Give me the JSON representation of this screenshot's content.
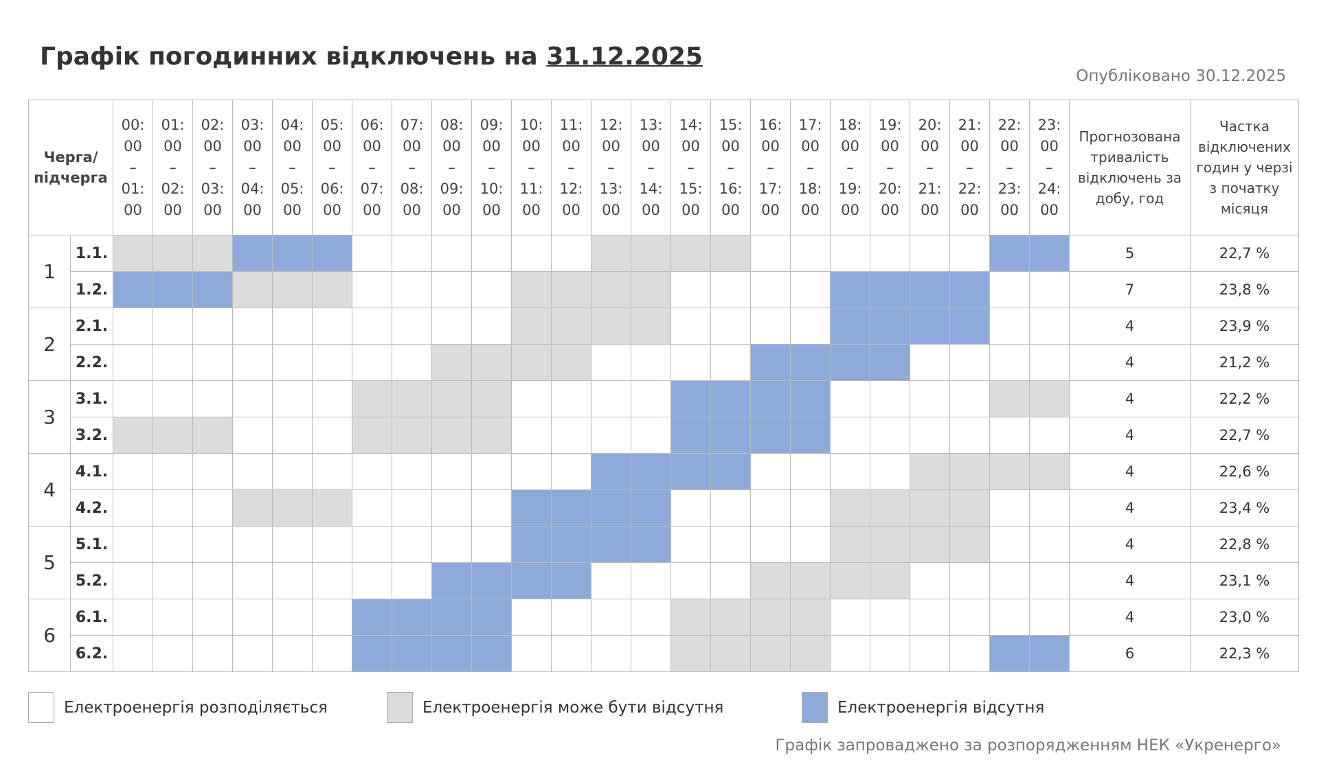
{
  "header": {
    "title": "Графік погодинних відключень на",
    "date": "31.12.2025",
    "published": "Опубліковано 30.12.2025"
  },
  "table": {
    "columns": {
      "queue": "Черга/ підчерга",
      "hours": [
        [
          "00:",
          "00",
          "–",
          "01:",
          "00"
        ],
        [
          "01:",
          "00",
          "–",
          "02:",
          "00"
        ],
        [
          "02:",
          "00",
          "–",
          "03:",
          "00"
        ],
        [
          "03:",
          "00",
          "–",
          "04:",
          "00"
        ],
        [
          "04:",
          "00",
          "–",
          "05:",
          "00"
        ],
        [
          "05:",
          "00",
          "–",
          "06:",
          "00"
        ],
        [
          "06:",
          "00",
          "–",
          "07:",
          "00"
        ],
        [
          "07:",
          "00",
          "–",
          "08:",
          "00"
        ],
        [
          "08:",
          "00",
          "–",
          "09:",
          "00"
        ],
        [
          "09:",
          "00",
          "–",
          "10:",
          "00"
        ],
        [
          "10:",
          "00",
          "–",
          "11:",
          "00"
        ],
        [
          "11:",
          "00",
          "–",
          "12:",
          "00"
        ],
        [
          "12:",
          "00",
          "–",
          "13:",
          "00"
        ],
        [
          "13:",
          "00",
          "–",
          "14:",
          "00"
        ],
        [
          "14:",
          "00",
          "–",
          "15:",
          "00"
        ],
        [
          "15:",
          "00",
          "–",
          "16:",
          "00"
        ],
        [
          "16:",
          "00",
          "–",
          "17:",
          "00"
        ],
        [
          "17:",
          "00",
          "–",
          "18:",
          "00"
        ],
        [
          "18:",
          "00",
          "–",
          "19:",
          "00"
        ],
        [
          "19:",
          "00",
          "–",
          "20:",
          "00"
        ],
        [
          "20:",
          "00",
          "–",
          "21:",
          "00"
        ],
        [
          "21:",
          "00",
          "–",
          "22:",
          "00"
        ],
        [
          "22:",
          "00",
          "–",
          "23:",
          "00"
        ],
        [
          "23:",
          "00",
          "–",
          "24:",
          "00"
        ]
      ],
      "duration": "Прогнозована тривалість відключень за добу, год",
      "share": "Частка відключених годин у черзі з початку місяця"
    },
    "groups": [
      {
        "queue": "1",
        "rows": [
          {
            "sub": "1.1.",
            "hours": [
              1,
              1,
              1,
              2,
              2,
              2,
              0,
              0,
              0,
              0,
              0,
              0,
              1,
              1,
              1,
              1,
              0,
              0,
              0,
              0,
              0,
              0,
              2,
              2
            ],
            "duration": 5,
            "share": "22,7 %"
          },
          {
            "sub": "1.2.",
            "hours": [
              2,
              2,
              2,
              1,
              1,
              1,
              0,
              0,
              0,
              0,
              1,
              1,
              1,
              1,
              0,
              0,
              0,
              0,
              2,
              2,
              2,
              2,
              0,
              0
            ],
            "duration": 7,
            "share": "23,8 %"
          }
        ]
      },
      {
        "queue": "2",
        "rows": [
          {
            "sub": "2.1.",
            "hours": [
              0,
              0,
              0,
              0,
              0,
              0,
              0,
              0,
              0,
              0,
              1,
              1,
              1,
              1,
              0,
              0,
              0,
              0,
              2,
              2,
              2,
              2,
              0,
              0
            ],
            "duration": 4,
            "share": "23,9 %"
          },
          {
            "sub": "2.2.",
            "hours": [
              0,
              0,
              0,
              0,
              0,
              0,
              0,
              0,
              1,
              1,
              1,
              1,
              0,
              0,
              0,
              0,
              2,
              2,
              2,
              2,
              0,
              0,
              0,
              0
            ],
            "duration": 4,
            "share": "21,2 %"
          }
        ]
      },
      {
        "queue": "3",
        "rows": [
          {
            "sub": "3.1.",
            "hours": [
              0,
              0,
              0,
              0,
              0,
              0,
              1,
              1,
              1,
              1,
              0,
              0,
              0,
              0,
              2,
              2,
              2,
              2,
              0,
              0,
              0,
              0,
              1,
              1
            ],
            "duration": 4,
            "share": "22,2 %"
          },
          {
            "sub": "3.2.",
            "hours": [
              1,
              1,
              1,
              0,
              0,
              0,
              1,
              1,
              1,
              1,
              0,
              0,
              0,
              0,
              2,
              2,
              2,
              2,
              0,
              0,
              0,
              0,
              0,
              0
            ],
            "duration": 4,
            "share": "22,7 %"
          }
        ]
      },
      {
        "queue": "4",
        "rows": [
          {
            "sub": "4.1.",
            "hours": [
              0,
              0,
              0,
              0,
              0,
              0,
              0,
              0,
              0,
              0,
              0,
              0,
              2,
              2,
              2,
              2,
              0,
              0,
              0,
              0,
              1,
              1,
              1,
              1
            ],
            "duration": 4,
            "share": "22,6 %"
          },
          {
            "sub": "4.2.",
            "hours": [
              0,
              0,
              0,
              1,
              1,
              1,
              0,
              0,
              0,
              0,
              2,
              2,
              2,
              2,
              0,
              0,
              0,
              0,
              1,
              1,
              1,
              1,
              0,
              0
            ],
            "duration": 4,
            "share": "23,4 %"
          }
        ]
      },
      {
        "queue": "5",
        "rows": [
          {
            "sub": "5.1.",
            "hours": [
              0,
              0,
              0,
              0,
              0,
              0,
              0,
              0,
              0,
              0,
              2,
              2,
              2,
              2,
              0,
              0,
              0,
              0,
              1,
              1,
              1,
              1,
              0,
              0
            ],
            "duration": 4,
            "share": "22,8 %"
          },
          {
            "sub": "5.2.",
            "hours": [
              0,
              0,
              0,
              0,
              0,
              0,
              0,
              0,
              2,
              2,
              2,
              2,
              0,
              0,
              0,
              0,
              1,
              1,
              1,
              1,
              0,
              0,
              0,
              0
            ],
            "duration": 4,
            "share": "23,1 %"
          }
        ]
      },
      {
        "queue": "6",
        "rows": [
          {
            "sub": "6.1.",
            "hours": [
              0,
              0,
              0,
              0,
              0,
              0,
              2,
              2,
              2,
              2,
              0,
              0,
              0,
              0,
              1,
              1,
              1,
              1,
              0,
              0,
              0,
              0,
              0,
              0
            ],
            "duration": 4,
            "share": "23,0 %"
          },
          {
            "sub": "6.2.",
            "hours": [
              0,
              0,
              0,
              0,
              0,
              0,
              2,
              2,
              2,
              2,
              0,
              0,
              0,
              0,
              1,
              1,
              1,
              1,
              0,
              0,
              0,
              0,
              2,
              2
            ],
            "duration": 6,
            "share": "22,3 %"
          }
        ]
      }
    ]
  },
  "legend": [
    {
      "label": "Електроенергія розподіляється",
      "color": "#ffffff"
    },
    {
      "label": "Електроенергія може бути відсутня",
      "color": "#dcdcdc"
    },
    {
      "label": "Електроенергія відсутня",
      "color": "#8eaadb"
    }
  ],
  "footer": "Графік запроваджено за розпорядженням НЕК «Укренерго»"
}
